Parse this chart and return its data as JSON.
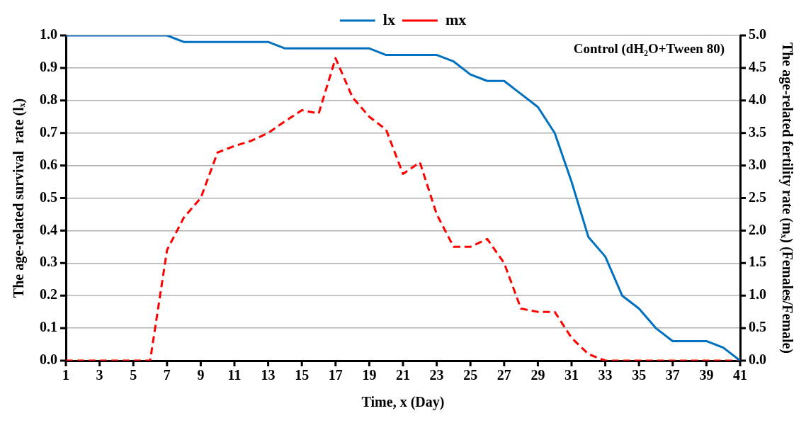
{
  "chart_data": {
    "type": "line",
    "xlabel": "Time, x (Day)",
    "ylabel": "The age-related survival  rate (lₓ)",
    "y2label": "The age-related fertility rate (mₓ) (Females/Female)",
    "annotations": [
      "Control (dH₂O+Tween 80)"
    ],
    "x": [
      1,
      2,
      3,
      4,
      5,
      6,
      7,
      8,
      9,
      10,
      11,
      12,
      13,
      14,
      15,
      16,
      17,
      18,
      19,
      20,
      21,
      22,
      23,
      24,
      25,
      26,
      27,
      28,
      29,
      30,
      31,
      32,
      33,
      34,
      35,
      36,
      37,
      38,
      39,
      40,
      41
    ],
    "series": [
      {
        "name": "lx",
        "color": "#0070c0",
        "line_style": "solid",
        "values": [
          1,
          1,
          1,
          1,
          1,
          1,
          1,
          0.98,
          0.98,
          0.98,
          0.98,
          0.98,
          0.98,
          0.96,
          0.96,
          0.96,
          0.96,
          0.96,
          0.96,
          0.94,
          0.94,
          0.94,
          0.94,
          0.92,
          0.88,
          0.86,
          0.86,
          0.82,
          0.78,
          0.7,
          0.55,
          0.38,
          0.32,
          0.2,
          0.16,
          0.1,
          0.06,
          0.06,
          0.06,
          0.04,
          0
        ]
      },
      {
        "name": "mx",
        "color": "#ff0000",
        "line_style": "dashed",
        "axis": "y2",
        "values": [
          0,
          0,
          0,
          0,
          0,
          0,
          1.7,
          2.2,
          2.5,
          3.2,
          3.3,
          3.38,
          3.5,
          3.68,
          3.85,
          3.8,
          4.65,
          4.05,
          3.75,
          3.55,
          2.87,
          3.05,
          2.25,
          1.75,
          1.75,
          1.87,
          1.5,
          0.8,
          0.75,
          0.75,
          0.35,
          0.1,
          0,
          0,
          0,
          0,
          0,
          0,
          0,
          0,
          0
        ]
      }
    ],
    "xlim": [
      1,
      41
    ],
    "xticks": [
      1,
      3,
      5,
      7,
      9,
      11,
      13,
      15,
      17,
      19,
      21,
      23,
      25,
      27,
      29,
      31,
      33,
      35,
      37,
      39,
      41
    ],
    "ylim": [
      0,
      1
    ],
    "yticks": [
      {
        "value": 0,
        "label": "0.0"
      },
      0.1,
      0.2,
      0.3,
      0.4,
      0.5,
      0.6,
      0.7,
      0.8,
      0.9,
      {
        "value": 1,
        "label": "1.0"
      }
    ],
    "y2lim": [
      0,
      5
    ],
    "y2ticks": [
      {
        "value": 0,
        "label": "0.0"
      },
      0.5,
      {
        "value": 1,
        "label": "1.0"
      },
      1.5,
      {
        "value": 2,
        "label": "2.0"
      },
      2.5,
      {
        "value": 3,
        "label": "3.0"
      },
      3.5,
      {
        "value": 4,
        "label": "4.0"
      },
      4.5,
      {
        "value": 5,
        "label": "5.0"
      }
    ],
    "grid": "y",
    "legend": "top",
    "marker": "none"
  }
}
